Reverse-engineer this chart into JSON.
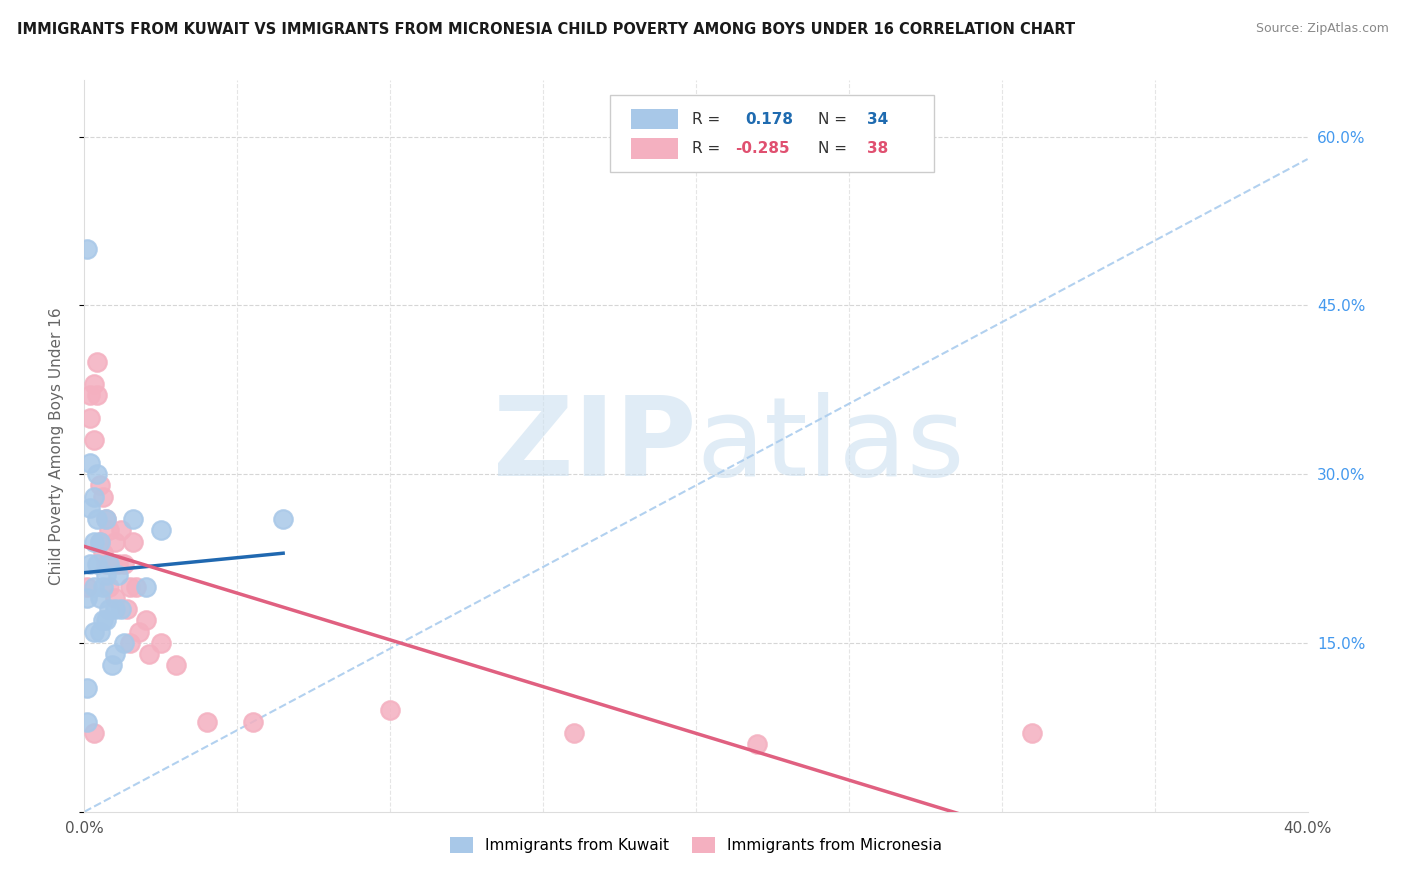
{
  "title": "IMMIGRANTS FROM KUWAIT VS IMMIGRANTS FROM MICRONESIA CHILD POVERTY AMONG BOYS UNDER 16 CORRELATION CHART",
  "source": "Source: ZipAtlas.com",
  "ylabel": "Child Poverty Among Boys Under 16",
  "xlim": [
    0.0,
    0.4
  ],
  "ylim": [
    0.0,
    0.65
  ],
  "xticks": [
    0.0,
    0.05,
    0.1,
    0.15,
    0.2,
    0.25,
    0.3,
    0.35,
    0.4
  ],
  "yticks_right": [
    0.6,
    0.45,
    0.3,
    0.15
  ],
  "yticklabels_right": [
    "60.0%",
    "45.0%",
    "30.0%",
    "15.0%"
  ],
  "kuwait_R": 0.178,
  "kuwait_N": 34,
  "micronesia_R": -0.285,
  "micronesia_N": 38,
  "kuwait_color": "#a8c8e8",
  "kuwait_line_color": "#2068b0",
  "micronesia_color": "#f4b0c0",
  "micronesia_line_color": "#e06080",
  "ref_line_color": "#aaccee",
  "watermark_zip": "ZIP",
  "watermark_atlas": "atlas",
  "background_color": "#ffffff",
  "grid_color": "#cccccc",
  "kuwait_x": [
    0.001,
    0.001,
    0.001,
    0.002,
    0.002,
    0.002,
    0.003,
    0.003,
    0.003,
    0.003,
    0.004,
    0.004,
    0.004,
    0.005,
    0.005,
    0.005,
    0.006,
    0.006,
    0.007,
    0.007,
    0.007,
    0.008,
    0.008,
    0.009,
    0.01,
    0.01,
    0.011,
    0.012,
    0.013,
    0.016,
    0.02,
    0.025,
    0.065,
    0.001
  ],
  "kuwait_y": [
    0.5,
    0.19,
    0.08,
    0.31,
    0.27,
    0.22,
    0.28,
    0.24,
    0.2,
    0.16,
    0.3,
    0.26,
    0.22,
    0.24,
    0.19,
    0.16,
    0.2,
    0.17,
    0.26,
    0.21,
    0.17,
    0.22,
    0.18,
    0.13,
    0.18,
    0.14,
    0.21,
    0.18,
    0.15,
    0.26,
    0.2,
    0.25,
    0.26,
    0.11
  ],
  "micronesia_x": [
    0.001,
    0.002,
    0.002,
    0.003,
    0.003,
    0.004,
    0.004,
    0.005,
    0.005,
    0.006,
    0.006,
    0.007,
    0.007,
    0.008,
    0.008,
    0.009,
    0.01,
    0.01,
    0.011,
    0.012,
    0.013,
    0.014,
    0.015,
    0.015,
    0.016,
    0.017,
    0.018,
    0.02,
    0.021,
    0.025,
    0.03,
    0.04,
    0.055,
    0.1,
    0.16,
    0.22,
    0.31,
    0.003
  ],
  "micronesia_y": [
    0.2,
    0.37,
    0.35,
    0.38,
    0.33,
    0.4,
    0.37,
    0.29,
    0.24,
    0.28,
    0.23,
    0.26,
    0.22,
    0.25,
    0.2,
    0.22,
    0.24,
    0.19,
    0.22,
    0.25,
    0.22,
    0.18,
    0.2,
    0.15,
    0.24,
    0.2,
    0.16,
    0.17,
    0.14,
    0.15,
    0.13,
    0.08,
    0.08,
    0.09,
    0.07,
    0.06,
    0.07,
    0.07
  ]
}
